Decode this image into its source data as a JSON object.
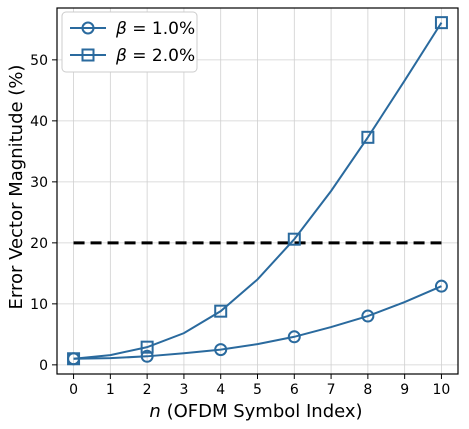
{
  "chart_data": {
    "type": "line",
    "xlabel_var": "n",
    "xlabel_rest": " (OFDM Symbol Index)",
    "ylabel": "Error Vector Magnitude (%)",
    "x": [
      0,
      1,
      2,
      3,
      4,
      5,
      6,
      7,
      8,
      9,
      10
    ],
    "xlim": [
      -0.45,
      10.45
    ],
    "ylim": [
      -1.5,
      58.5
    ],
    "xticks": [
      0,
      1,
      2,
      3,
      4,
      5,
      6,
      7,
      8,
      9,
      10
    ],
    "yticks": [
      0,
      10,
      20,
      30,
      40,
      50
    ],
    "grid": true,
    "legend_position": "top-left",
    "series": [
      {
        "name_greek": "β",
        "name_value": " = 1.0%",
        "marker": "circle",
        "color": "#2a6a9e",
        "values": [
          1.0,
          1.1,
          1.4,
          1.9,
          2.5,
          3.4,
          4.6,
          6.2,
          8.0,
          10.3,
          12.9
        ],
        "marker_indices": [
          0,
          2,
          4,
          6,
          8,
          10
        ]
      },
      {
        "name_greek": "β",
        "name_value": " = 2.0%",
        "marker": "square",
        "color": "#2a6a9e",
        "values": [
          1.0,
          1.6,
          2.9,
          5.2,
          8.8,
          14.0,
          20.6,
          28.5,
          37.3,
          46.6,
          56.1
        ],
        "marker_indices": [
          0,
          2,
          4,
          6,
          8,
          10
        ]
      }
    ],
    "threshold": {
      "y": 20,
      "x_from": 0,
      "x_to": 10,
      "color": "#000000",
      "style": "dashed"
    }
  }
}
